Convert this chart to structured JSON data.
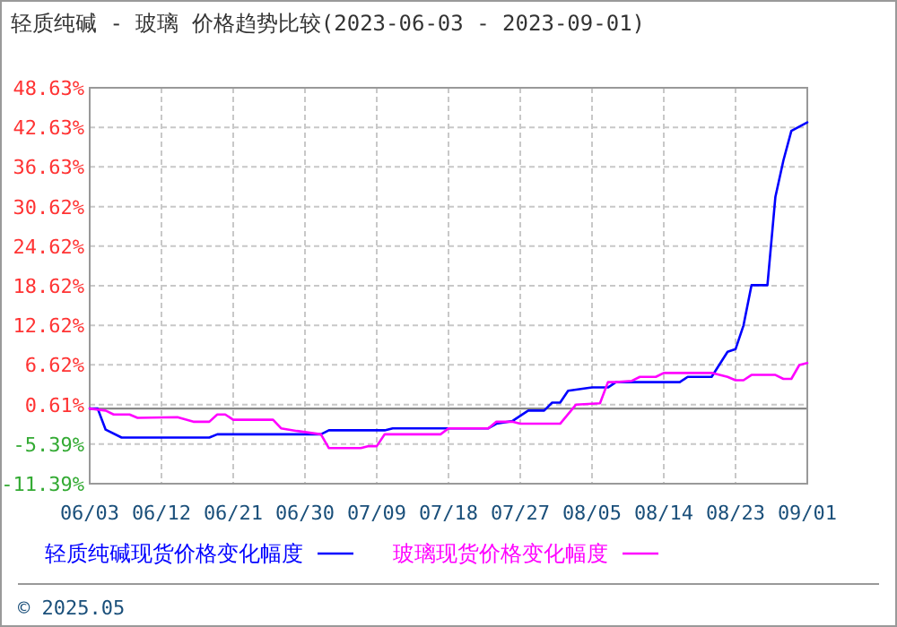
{
  "chart_data": {
    "type": "line",
    "title": "轻质纯碱 - 玻璃 价格趋势比较(2023-06-03 - 2023-09-01)",
    "xlim": [
      "--06-03",
      "--09-01"
    ],
    "xticks": [
      {
        "value": "--06-03",
        "label": "06/03"
      },
      {
        "value": "--06-12",
        "label": "06/12"
      },
      {
        "value": "--06-21",
        "label": "06/21"
      },
      {
        "value": "--06-30",
        "label": "06/30"
      },
      {
        "value": "--07-09",
        "label": "07/09"
      },
      {
        "value": "--07-18",
        "label": "07/18"
      },
      {
        "value": "--07-27",
        "label": "07/27"
      },
      {
        "value": "--08-05",
        "label": "08/05"
      },
      {
        "value": "--08-14",
        "label": "08/14"
      },
      {
        "value": "--08-23",
        "label": "08/23"
      },
      {
        "value": "--09-01",
        "label": "09/01"
      }
    ],
    "ylim": [
      -11.39,
      48.63
    ],
    "yticks": [
      {
        "value": 48.63,
        "label": "48.63%"
      },
      {
        "value": 42.63,
        "label": "42.63%"
      },
      {
        "value": 36.63,
        "label": "36.63%"
      },
      {
        "value": 30.62,
        "label": "30.62%"
      },
      {
        "value": 24.62,
        "label": "24.62%"
      },
      {
        "value": 18.62,
        "label": "18.62%"
      },
      {
        "value": 12.62,
        "label": "12.62%"
      },
      {
        "value": 6.62,
        "label": "6.62%"
      },
      {
        "value": 0.61,
        "label": "0.61%"
      },
      {
        "value": -5.39,
        "label": "-5.39%"
      },
      {
        "value": -11.39,
        "label": "-11.39%"
      }
    ],
    "grid": true,
    "legend": "bottom",
    "ref_lines": [
      {
        "axis": "y",
        "value": 0,
        "color": "#888888"
      }
    ],
    "annotations": [
      "© 2025.05"
    ],
    "series": [
      {
        "name": "轻质纯碱现货价格变化幅度",
        "color": "#0000ff",
        "x": [
          "--06-03",
          "--06-04",
          "--06-05",
          "--06-07",
          "--06-18",
          "--06-19",
          "--07-02",
          "--07-03",
          "--07-10",
          "--07-11",
          "--07-23",
          "--07-24",
          "--07-26",
          "--07-28",
          "--07-30",
          "--07-31",
          "--08-01",
          "--08-02",
          "--08-05",
          "--08-07",
          "--08-08",
          "--08-16",
          "--08-17",
          "--08-20",
          "--08-22",
          "--08-23",
          "--08-24",
          "--08-25",
          "--08-27",
          "--08-28",
          "--08-29",
          "--08-30",
          "--09-01"
        ],
        "values": [
          0,
          0,
          -3.2,
          -4.4,
          -4.4,
          -3.9,
          -3.9,
          -3.3,
          -3.3,
          -3.0,
          -3.0,
          -2.3,
          -1.9,
          -0.3,
          -0.3,
          0.9,
          0.9,
          2.7,
          3.2,
          3.2,
          4.0,
          4.0,
          4.8,
          4.8,
          8.6,
          9.0,
          12.6,
          18.7,
          18.7,
          32.1,
          37.6,
          42.1,
          43.4
        ]
      },
      {
        "name": "玻璃现货价格变化幅度",
        "color": "#ff00ff",
        "x": [
          "--06-03",
          "--06-05",
          "--06-06",
          "--06-08",
          "--06-09",
          "--06-14",
          "--06-16",
          "--06-18",
          "--06-19",
          "--06-20",
          "--06-21",
          "--06-26",
          "--06-27",
          "--06-29",
          "--07-02",
          "--07-03",
          "--07-07",
          "--07-08",
          "--07-09",
          "--07-10",
          "--07-17",
          "--07-18",
          "--07-23",
          "--07-24",
          "--07-26",
          "--07-27",
          "--08-01",
          "--08-03",
          "--08-06",
          "--08-07",
          "--08-08",
          "--08-10",
          "--08-11",
          "--08-13",
          "--08-14",
          "--08-20",
          "--08-22",
          "--08-23",
          "--08-24",
          "--08-25",
          "--08-28",
          "--08-29",
          "--08-30",
          "--08-31",
          "--09-01"
        ],
        "values": [
          0,
          -0.3,
          -0.9,
          -0.9,
          -1.4,
          -1.3,
          -2.0,
          -2.0,
          -0.9,
          -0.9,
          -1.7,
          -1.7,
          -3.0,
          -3.4,
          -3.9,
          -6.0,
          -6.0,
          -5.7,
          -5.7,
          -3.9,
          -3.9,
          -3.0,
          -3.0,
          -2.0,
          -2.0,
          -2.3,
          -2.3,
          0.6,
          0.8,
          4.0,
          4.0,
          4.2,
          4.8,
          4.8,
          5.4,
          5.4,
          4.8,
          4.3,
          4.3,
          5.1,
          5.1,
          4.5,
          4.5,
          6.6,
          6.9
        ]
      }
    ]
  }
}
